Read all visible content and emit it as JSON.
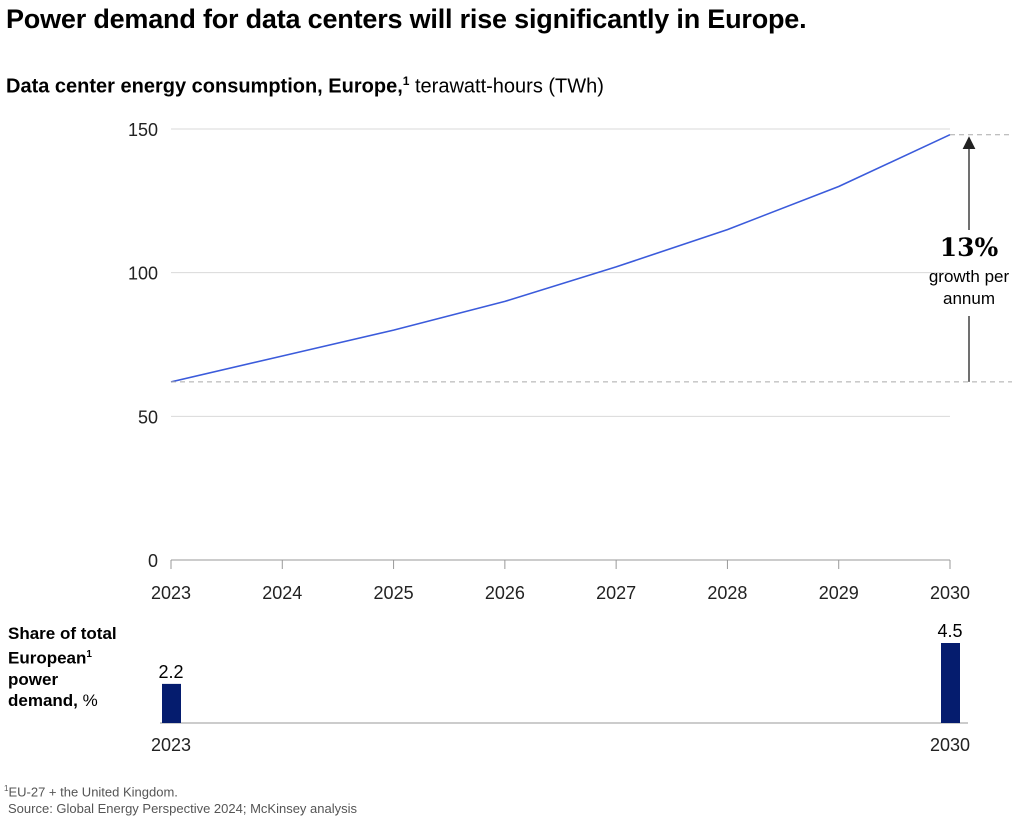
{
  "title": "Power demand for data centers will rise significantly in Europe.",
  "subtitle": {
    "bold": "Data center energy consumption, Europe,",
    "note_ref": "1",
    "unit": " terawatt-hours (TWh)"
  },
  "annotation": {
    "value": "13%",
    "line1": "growth per",
    "line2": "annum"
  },
  "share_title": {
    "line1": "Share of total",
    "line2": "European",
    "note_ref": "1",
    "line3": "power",
    "line4_bold": "demand,",
    "line4_unit": " %"
  },
  "footnote": {
    "marker": "1",
    "text": "EU-27 + the United Kingdom.",
    "source": "Source: Global Energy Perspective 2024; McKinsey analysis"
  },
  "colors": {
    "line": "#3b5bdb",
    "bar": "#051c6e",
    "grid": "#d9d9d9",
    "dashed": "#aaaaaa"
  },
  "chart_data": [
    {
      "type": "line",
      "title": "Data center energy consumption, Europe",
      "ylabel": "terawatt-hours (TWh)",
      "xlabel": "",
      "x": [
        "2023",
        "2024",
        "2025",
        "2026",
        "2027",
        "2028",
        "2029",
        "2030"
      ],
      "series": [
        {
          "values": [
            62,
            71,
            80,
            90,
            102,
            115,
            130,
            148
          ]
        }
      ],
      "ylim": [
        0,
        150
      ],
      "yticks": [
        0,
        50,
        100,
        150
      ],
      "grid": true
    },
    {
      "type": "bar",
      "title": "Share of total European power demand, %",
      "categories": [
        "2023",
        "2030"
      ],
      "values": [
        2.2,
        4.5
      ],
      "value_labels": [
        "2.2",
        "4.5"
      ]
    }
  ]
}
